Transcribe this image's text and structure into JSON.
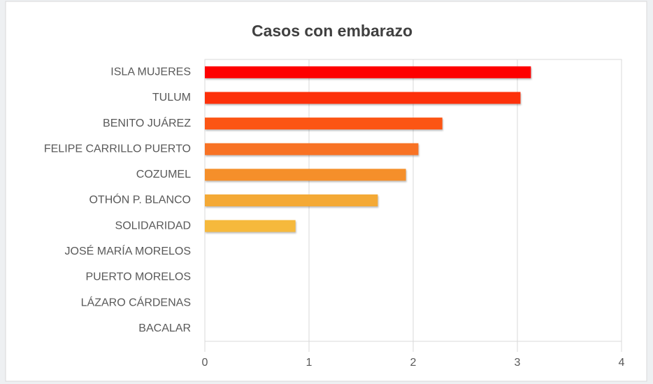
{
  "chart_data": {
    "type": "bar",
    "orientation": "horizontal",
    "title": "Casos con embarazo",
    "categories": [
      "ISLA MUJERES",
      "TULUM",
      "BENITO JUÁREZ",
      "FELIPE CARRILLO PUERTO",
      "COZUMEL",
      "OTHÓN P. BLANCO",
      "SOLIDARIDAD",
      "JOSÉ MARÍA MORELOS",
      "PUERTO MORELOS",
      "LÁZARO CÁRDENAS",
      "BACALAR"
    ],
    "values": [
      3.13,
      3.03,
      2.28,
      2.05,
      1.93,
      1.66,
      0.87,
      0,
      0,
      0,
      0
    ],
    "colors": [
      "#fe0000",
      "#fd300a",
      "#fc5514",
      "#f87224",
      "#f58f2a",
      "#f4a935",
      "#f6b93c",
      "#f6b93c",
      "#f6b93c",
      "#f6b93c",
      "#f6b93c"
    ],
    "xlim": [
      0,
      4
    ],
    "xticks": [
      0,
      1,
      2,
      3,
      4
    ],
    "grid": true
  }
}
